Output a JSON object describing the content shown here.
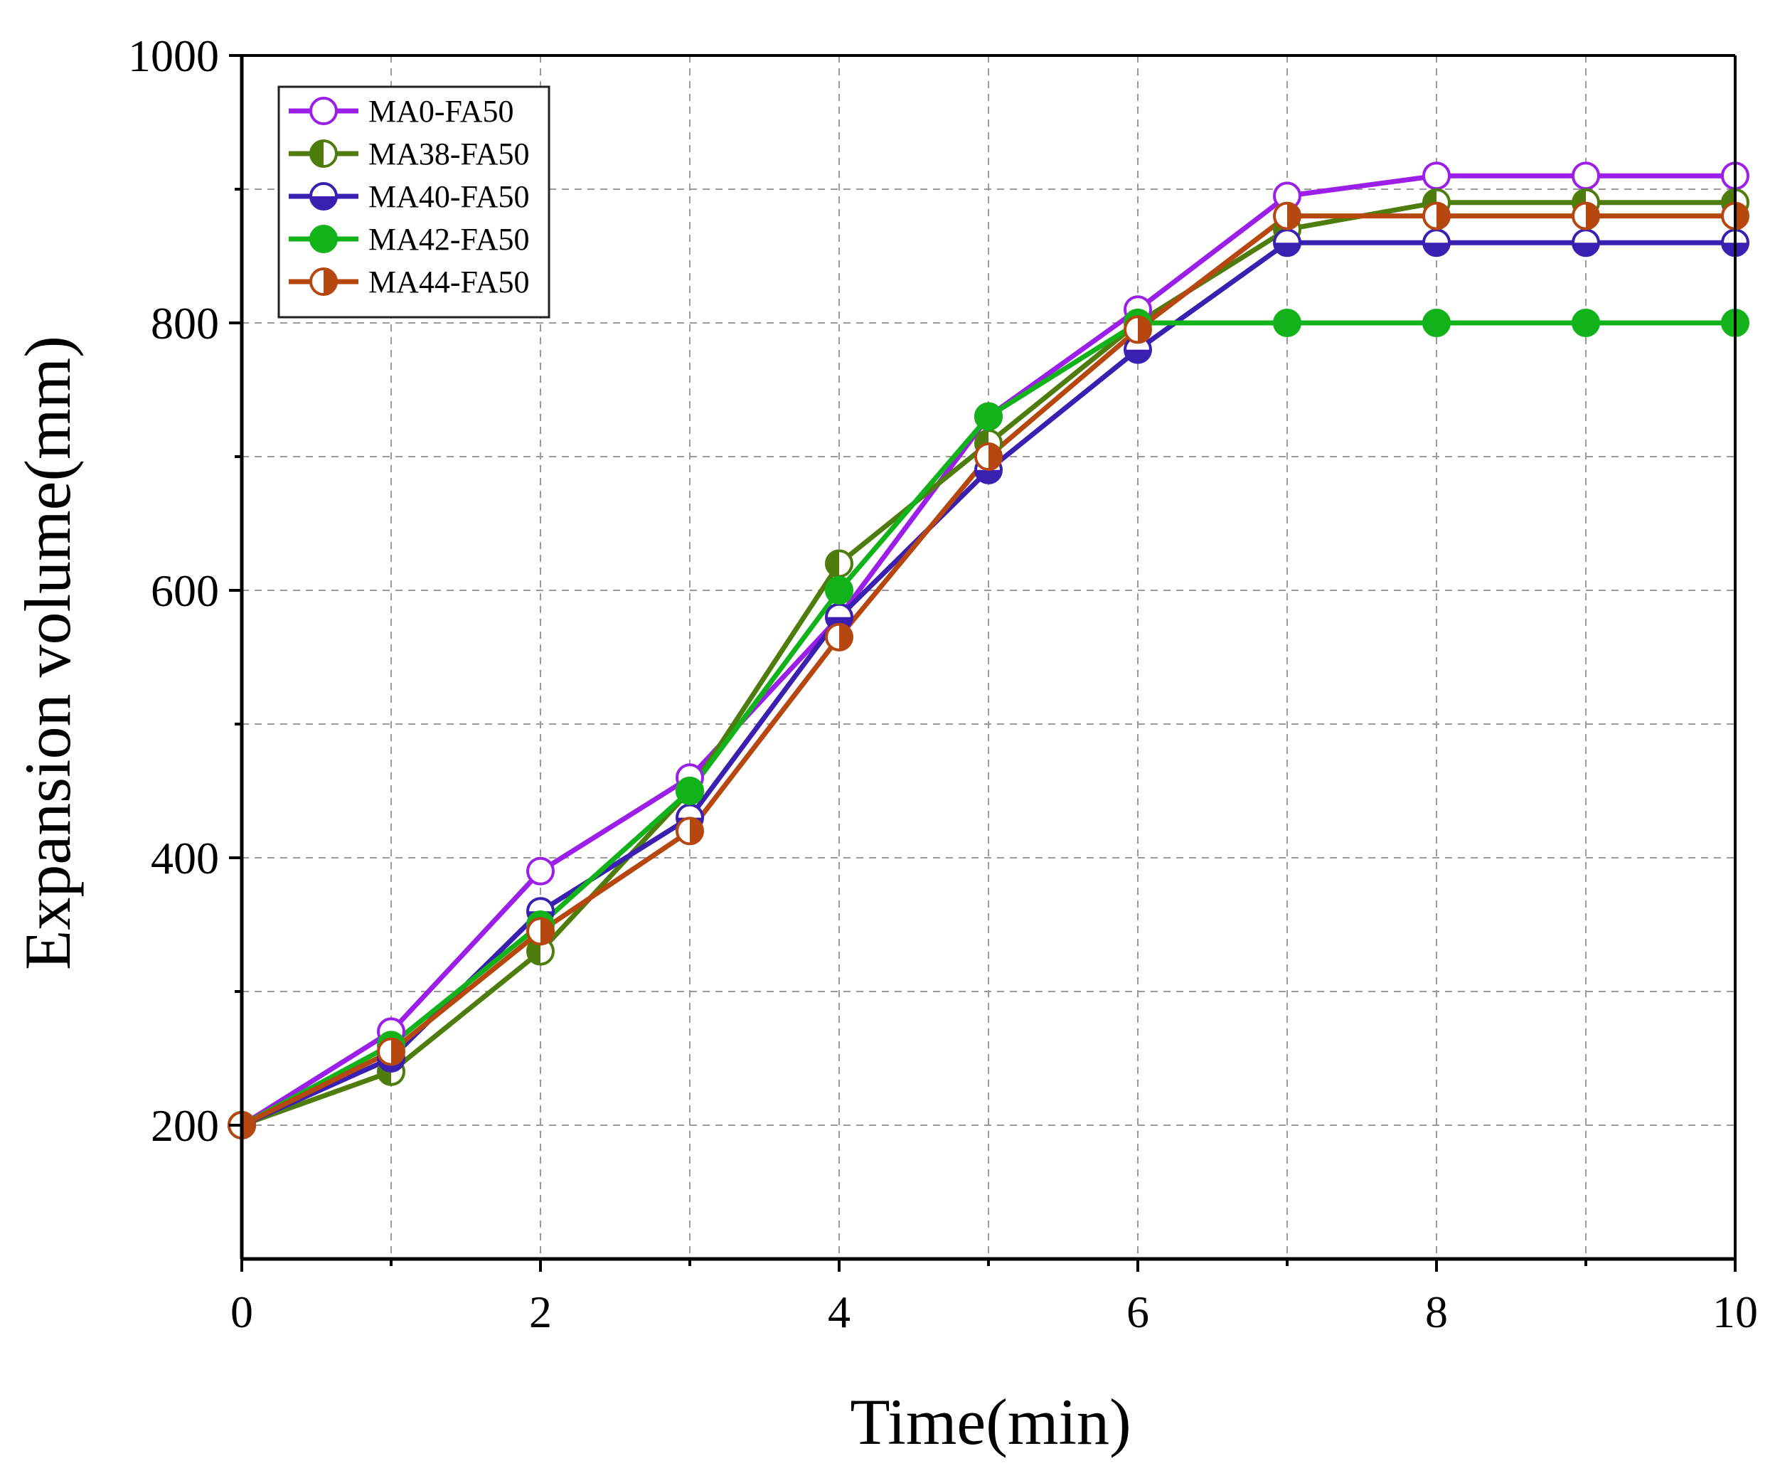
{
  "chart_data": {
    "type": "line",
    "xlabel": "Time(min)",
    "ylabel": "Expansion volume(mm)",
    "xlim": [
      0,
      10
    ],
    "ylim": [
      100,
      1000
    ],
    "x_ticks": [
      0,
      2,
      4,
      6,
      8,
      10
    ],
    "x_minor_ticks": [
      1,
      3,
      5,
      7,
      9
    ],
    "y_ticks": [
      200,
      400,
      600,
      800,
      1000
    ],
    "y_minor_ticks": [
      300,
      500,
      700,
      900
    ],
    "grid": true,
    "legend_position": "top-left",
    "x": [
      0,
      1,
      2,
      3,
      4,
      5,
      6,
      7,
      8,
      9,
      10
    ],
    "series": [
      {
        "name": "MA0-FA50",
        "color": "#9B1FE8",
        "marker": "circle-open-bottom",
        "values": [
          200,
          270,
          390,
          460,
          580,
          730,
          810,
          895,
          910,
          910,
          910
        ]
      },
      {
        "name": "MA38-FA50",
        "color": "#4E7D0E",
        "marker": "circle-half-left",
        "values": [
          200,
          240,
          330,
          450,
          620,
          710,
          800,
          870,
          890,
          890,
          890
        ]
      },
      {
        "name": "MA40-FA50",
        "color": "#3A1FB0",
        "marker": "circle-half-bottom",
        "values": [
          200,
          250,
          360,
          430,
          580,
          690,
          780,
          860,
          860,
          860,
          860
        ]
      },
      {
        "name": "MA42-FA50",
        "color": "#12B21B",
        "marker": "circle-filled",
        "values": [
          200,
          260,
          350,
          450,
          600,
          730,
          800,
          800,
          800,
          800,
          800
        ]
      },
      {
        "name": "MA44-FA50",
        "color": "#B5470F",
        "marker": "circle-half-right",
        "values": [
          200,
          255,
          345,
          420,
          565,
          700,
          795,
          880,
          880,
          880,
          880
        ]
      }
    ]
  }
}
